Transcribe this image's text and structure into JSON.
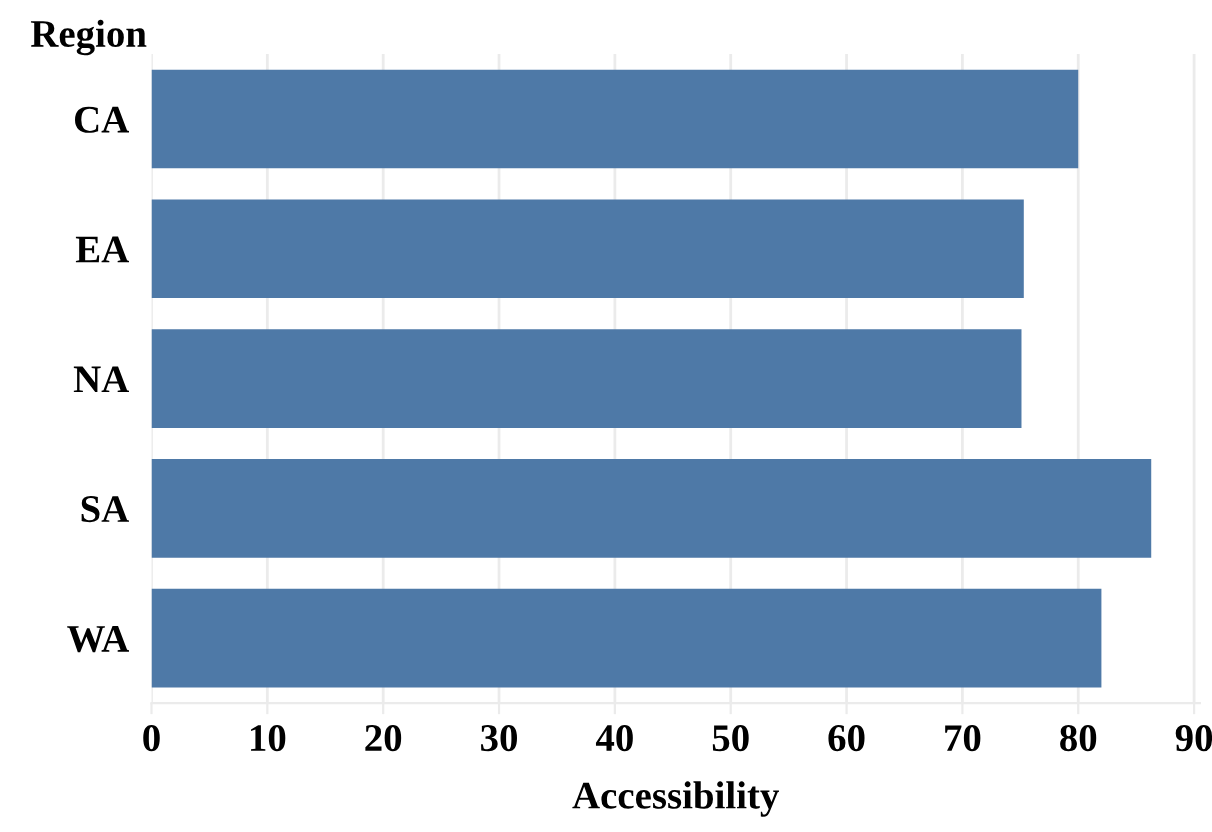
{
  "chart_data": {
    "type": "bar",
    "orientation": "horizontal",
    "xlabel": "Accessibility",
    "ylabel": "Region",
    "categories": [
      "CA",
      "EA",
      "NA",
      "SA",
      "WA"
    ],
    "values": [
      80.0,
      75.3,
      75.1,
      86.3,
      82.0
    ],
    "color": "#4e79a7",
    "xlim": [
      0,
      90.5
    ],
    "xticks": [
      0,
      10,
      20,
      30,
      40,
      50,
      60,
      70,
      80,
      90
    ],
    "grid": "x"
  }
}
